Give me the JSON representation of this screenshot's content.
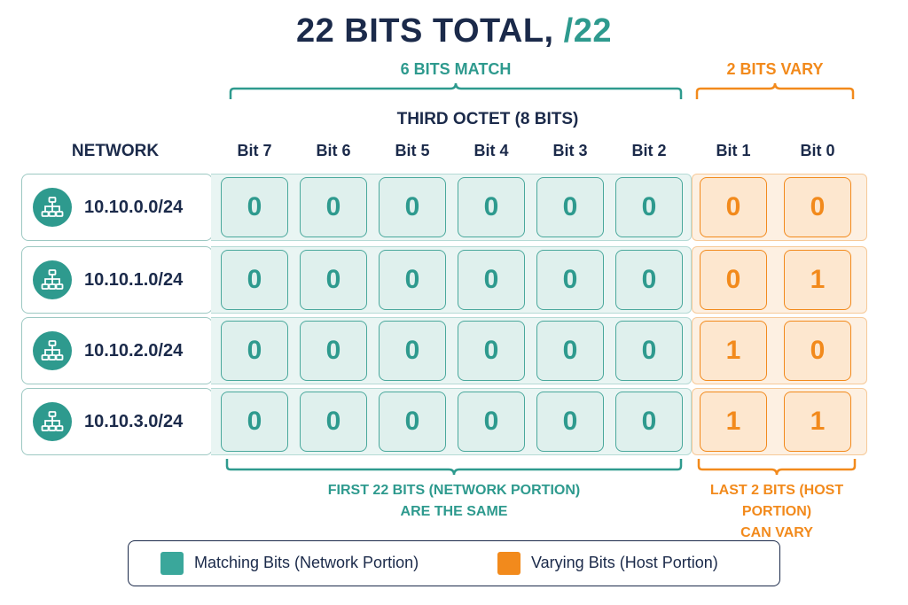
{
  "title": {
    "main": "22 BITS TOTAL, ",
    "accent": "/22"
  },
  "top_labels": {
    "match": "6 BITS MATCH",
    "vary": "2 BITS VARY"
  },
  "octet_label": "THIRD OCTET (8 BITS)",
  "network_header": "NETWORK",
  "bit_headers": [
    "Bit 7",
    "Bit 6",
    "Bit 5",
    "Bit 4",
    "Bit 3",
    "Bit 2",
    "Bit 1",
    "Bit 0"
  ],
  "rows": [
    {
      "network": "10.10.0.0/24",
      "bits": [
        "0",
        "0",
        "0",
        "0",
        "0",
        "0",
        "0",
        "0"
      ]
    },
    {
      "network": "10.10.1.0/24",
      "bits": [
        "0",
        "0",
        "0",
        "0",
        "0",
        "0",
        "0",
        "1"
      ]
    },
    {
      "network": "10.10.2.0/24",
      "bits": [
        "0",
        "0",
        "0",
        "0",
        "0",
        "0",
        "1",
        "0"
      ]
    },
    {
      "network": "10.10.3.0/24",
      "bits": [
        "0",
        "0",
        "0",
        "0",
        "0",
        "0",
        "1",
        "1"
      ]
    }
  ],
  "bottom_labels": {
    "network_line1": "FIRST 22 BITS (NETWORK PORTION)",
    "network_line2": "ARE THE SAME",
    "host_line1": "LAST 2 BITS (HOST PORTION)",
    "host_line2": "CAN VARY"
  },
  "legend": {
    "matching": "Matching Bits (Network Portion)",
    "varying": "Varying Bits (Host Portion)"
  },
  "colors": {
    "teal": "#2e9a8e",
    "orange": "#f28a1c",
    "navy": "#1b2a4a"
  },
  "icons": {
    "network": "network-hierarchy-icon"
  }
}
